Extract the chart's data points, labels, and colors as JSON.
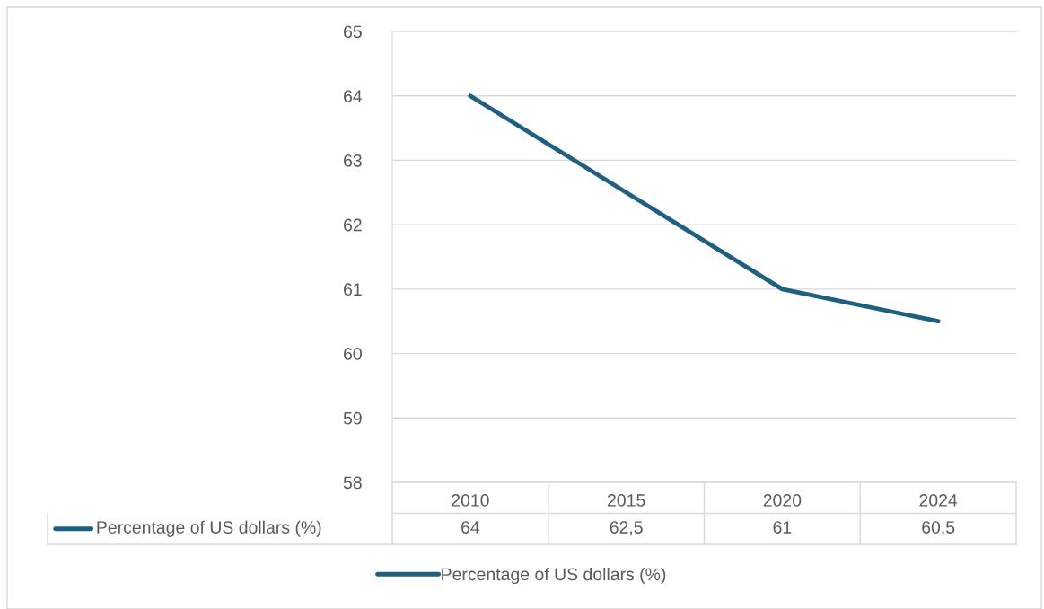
{
  "chart_data": {
    "type": "line",
    "categories": [
      "2010",
      "2015",
      "2020",
      "2024"
    ],
    "series": [
      {
        "name": "Percentage of US dollars (%)",
        "color": "#1f5f80",
        "values": [
          64,
          62.5,
          61,
          60.5
        ],
        "value_labels": [
          "64",
          "62,5",
          "61",
          "60,5"
        ]
      }
    ],
    "ylim": [
      58,
      65
    ],
    "yticks": [
      58,
      59,
      60,
      61,
      62,
      63,
      64,
      65
    ],
    "grid": "y",
    "legend": "bottom",
    "line_style": "solid",
    "marker": "none"
  }
}
